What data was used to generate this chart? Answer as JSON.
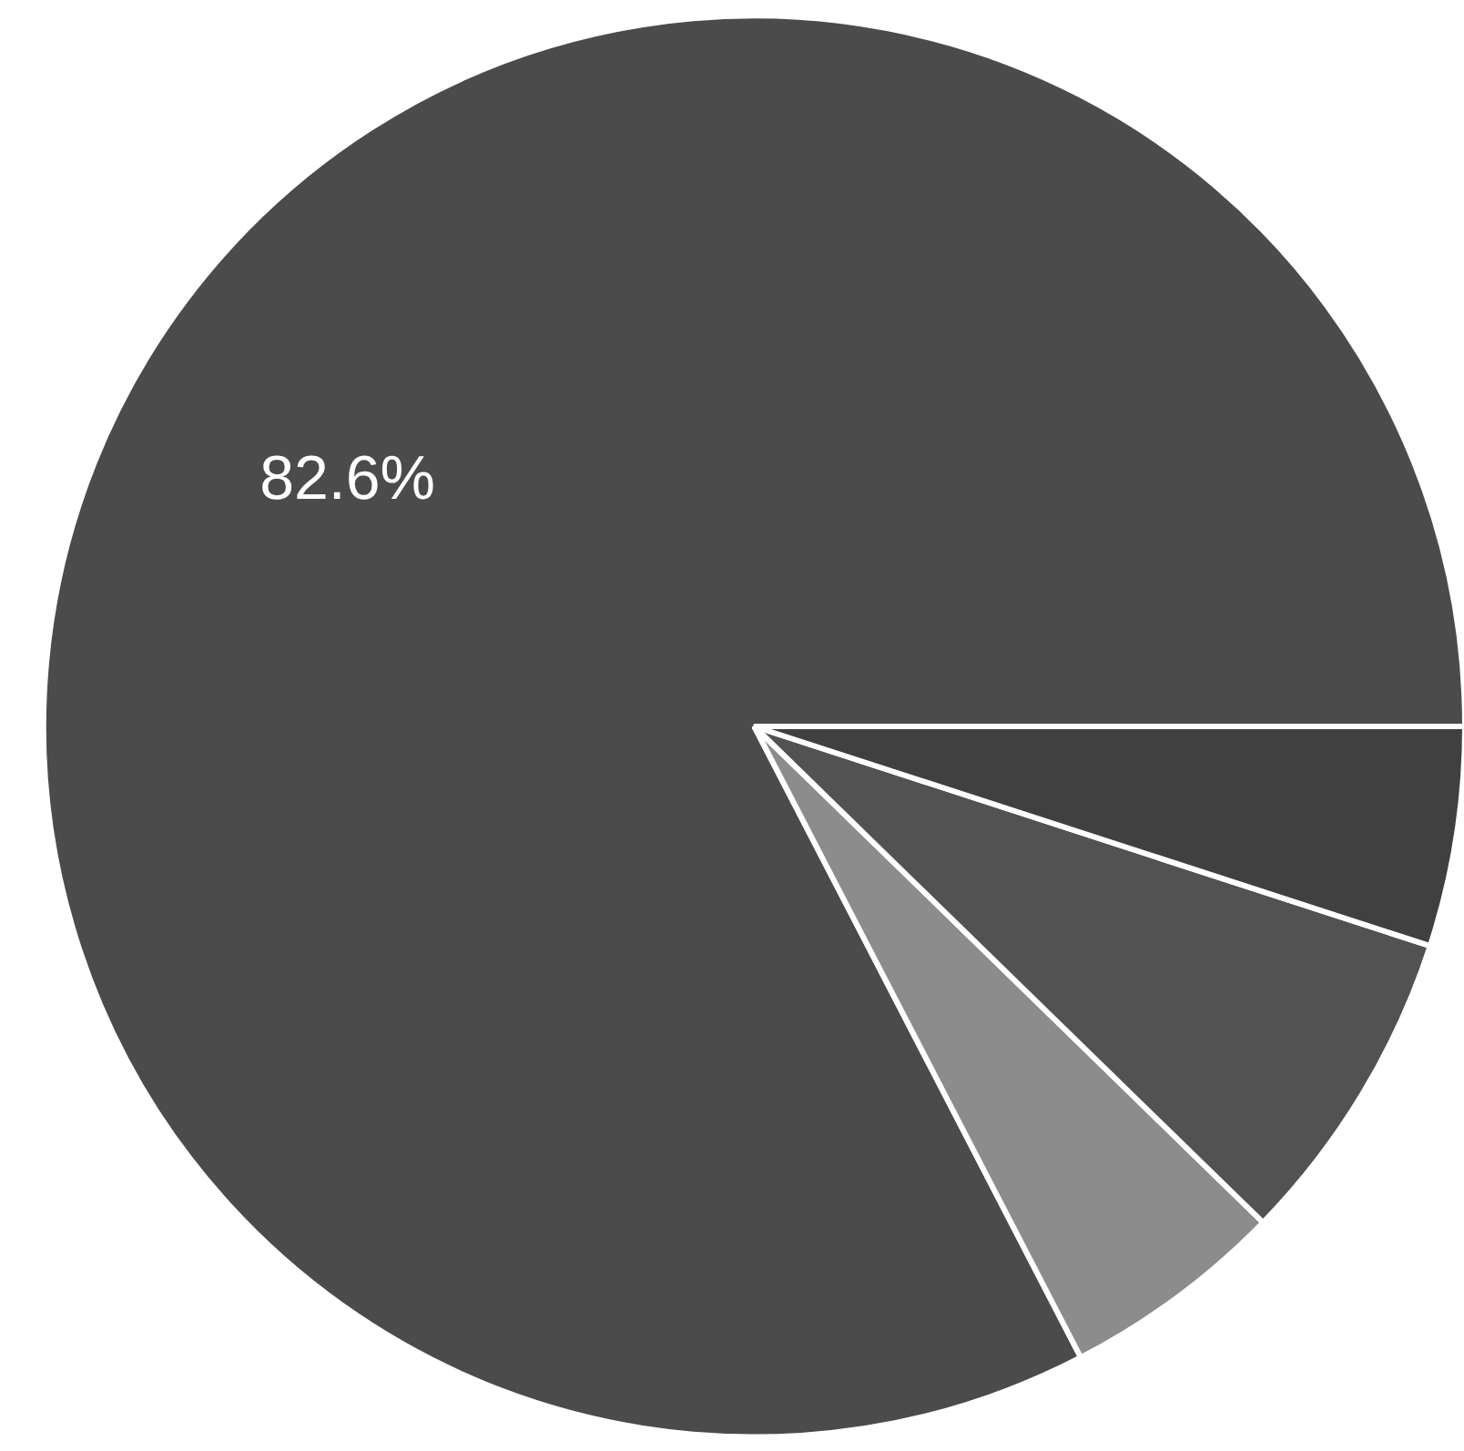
{
  "chart_data": {
    "type": "pie",
    "categories": [
      null,
      null,
      null,
      null
    ],
    "values": [
      82.6,
      5.1,
      7.3,
      5.0
    ],
    "colors": [
      "#4b4b4b",
      "#8c8c8c",
      "#525252",
      "#404040"
    ],
    "value_labels": [
      "82.6%",
      null,
      null,
      null
    ]
  }
}
